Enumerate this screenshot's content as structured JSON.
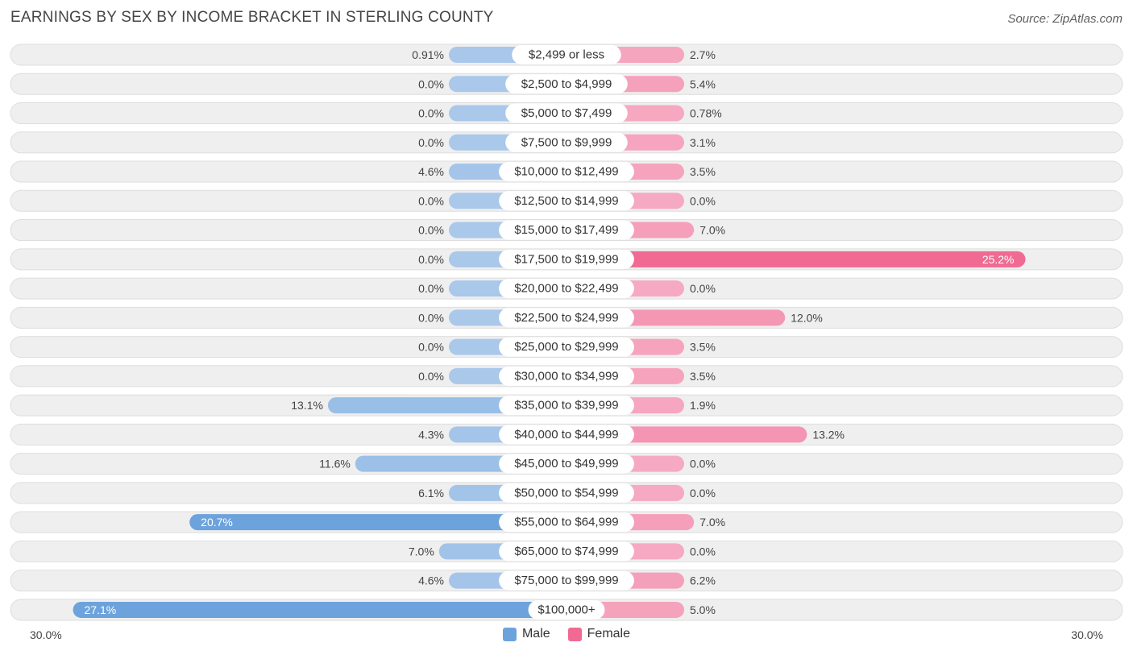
{
  "title": "EARNINGS BY SEX BY INCOME BRACKET IN STERLING COUNTY",
  "source": "Source: ZipAtlas.com",
  "axis": {
    "left_label": "30.0%",
    "right_label": "30.0%"
  },
  "legend": {
    "male": "Male",
    "female": "Female"
  },
  "colors": {
    "male_light": "#a9c8ea",
    "male_dark": "#6da3dc",
    "female_light": "#f6a9c2",
    "female_dark": "#f06a93",
    "row_bg": "#efefef",
    "row_border": "#dedede"
  },
  "chart_data": {
    "type": "bar",
    "orientation": "diverging-horizontal",
    "title": "EARNINGS BY SEX BY INCOME BRACKET IN STERLING COUNTY",
    "xlim": [
      -30,
      30
    ],
    "categories": [
      "$2,499 or less",
      "$2,500 to $4,999",
      "$5,000 to $7,499",
      "$7,500 to $9,999",
      "$10,000 to $12,499",
      "$12,500 to $14,999",
      "$15,000 to $17,499",
      "$17,500 to $19,999",
      "$20,000 to $22,499",
      "$22,500 to $24,999",
      "$25,000 to $29,999",
      "$30,000 to $34,999",
      "$35,000 to $39,999",
      "$40,000 to $44,999",
      "$45,000 to $49,999",
      "$50,000 to $54,999",
      "$55,000 to $64,999",
      "$65,000 to $74,999",
      "$75,000 to $99,999",
      "$100,000+"
    ],
    "series": [
      {
        "name": "Male",
        "values": [
          0.91,
          0.0,
          0.0,
          0.0,
          4.6,
          0.0,
          0.0,
          0.0,
          0.0,
          0.0,
          0.0,
          0.0,
          13.1,
          4.3,
          11.6,
          6.1,
          20.7,
          7.0,
          4.6,
          27.1
        ],
        "labels": [
          "0.91%",
          "0.0%",
          "0.0%",
          "0.0%",
          "4.6%",
          "0.0%",
          "0.0%",
          "0.0%",
          "0.0%",
          "0.0%",
          "0.0%",
          "0.0%",
          "13.1%",
          "4.3%",
          "11.6%",
          "6.1%",
          "20.7%",
          "7.0%",
          "4.6%",
          "27.1%"
        ]
      },
      {
        "name": "Female",
        "values": [
          2.7,
          5.4,
          0.78,
          3.1,
          3.5,
          0.0,
          7.0,
          25.2,
          0.0,
          12.0,
          3.5,
          3.5,
          1.9,
          13.2,
          0.0,
          0.0,
          7.0,
          0.0,
          6.2,
          5.0
        ],
        "labels": [
          "2.7%",
          "5.4%",
          "0.78%",
          "3.1%",
          "3.5%",
          "0.0%",
          "7.0%",
          "25.2%",
          "0.0%",
          "12.0%",
          "3.5%",
          "3.5%",
          "1.9%",
          "13.2%",
          "0.0%",
          "0.0%",
          "7.0%",
          "0.0%",
          "6.2%",
          "5.0%"
        ]
      }
    ]
  }
}
